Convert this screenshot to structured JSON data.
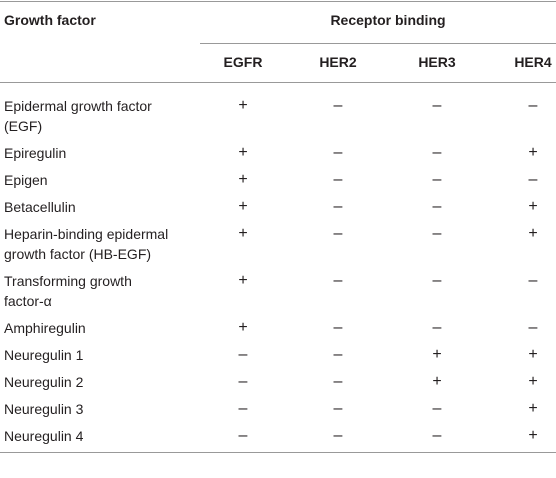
{
  "header": {
    "title": "Growth factor",
    "group": "Receptor binding",
    "columns": [
      "EGFR",
      "HER2",
      "HER3",
      "HER4"
    ]
  },
  "table": {
    "rows": [
      {
        "name": "Epidermal growth factor (EGF)",
        "cells": [
          "+",
          "–",
          "–",
          "–"
        ]
      },
      {
        "name": "Epiregulin",
        "cells": [
          "+",
          "–",
          "–",
          "+"
        ]
      },
      {
        "name": "Epigen",
        "cells": [
          "+",
          "–",
          "–",
          "–"
        ]
      },
      {
        "name": "Betacellulin",
        "cells": [
          "+",
          "–",
          "–",
          "+"
        ]
      },
      {
        "name": "Heparin-binding epidermal growth factor (HB-EGF)",
        "cells": [
          "+",
          "–",
          "–",
          "+"
        ]
      },
      {
        "name": "Transforming growth factor-α",
        "cells": [
          "+",
          "–",
          "–",
          "–"
        ]
      },
      {
        "name": "Amphiregulin",
        "cells": [
          "+",
          "–",
          "–",
          "–"
        ]
      },
      {
        "name": "Neuregulin 1",
        "cells": [
          "–",
          "–",
          "+",
          "+"
        ]
      },
      {
        "name": "Neuregulin 2",
        "cells": [
          "–",
          "–",
          "+",
          "+"
        ]
      },
      {
        "name": "Neuregulin 3",
        "cells": [
          "–",
          "–",
          "–",
          "+"
        ]
      },
      {
        "name": "Neuregulin 4",
        "cells": [
          "–",
          "–",
          "–",
          "+"
        ]
      }
    ]
  }
}
